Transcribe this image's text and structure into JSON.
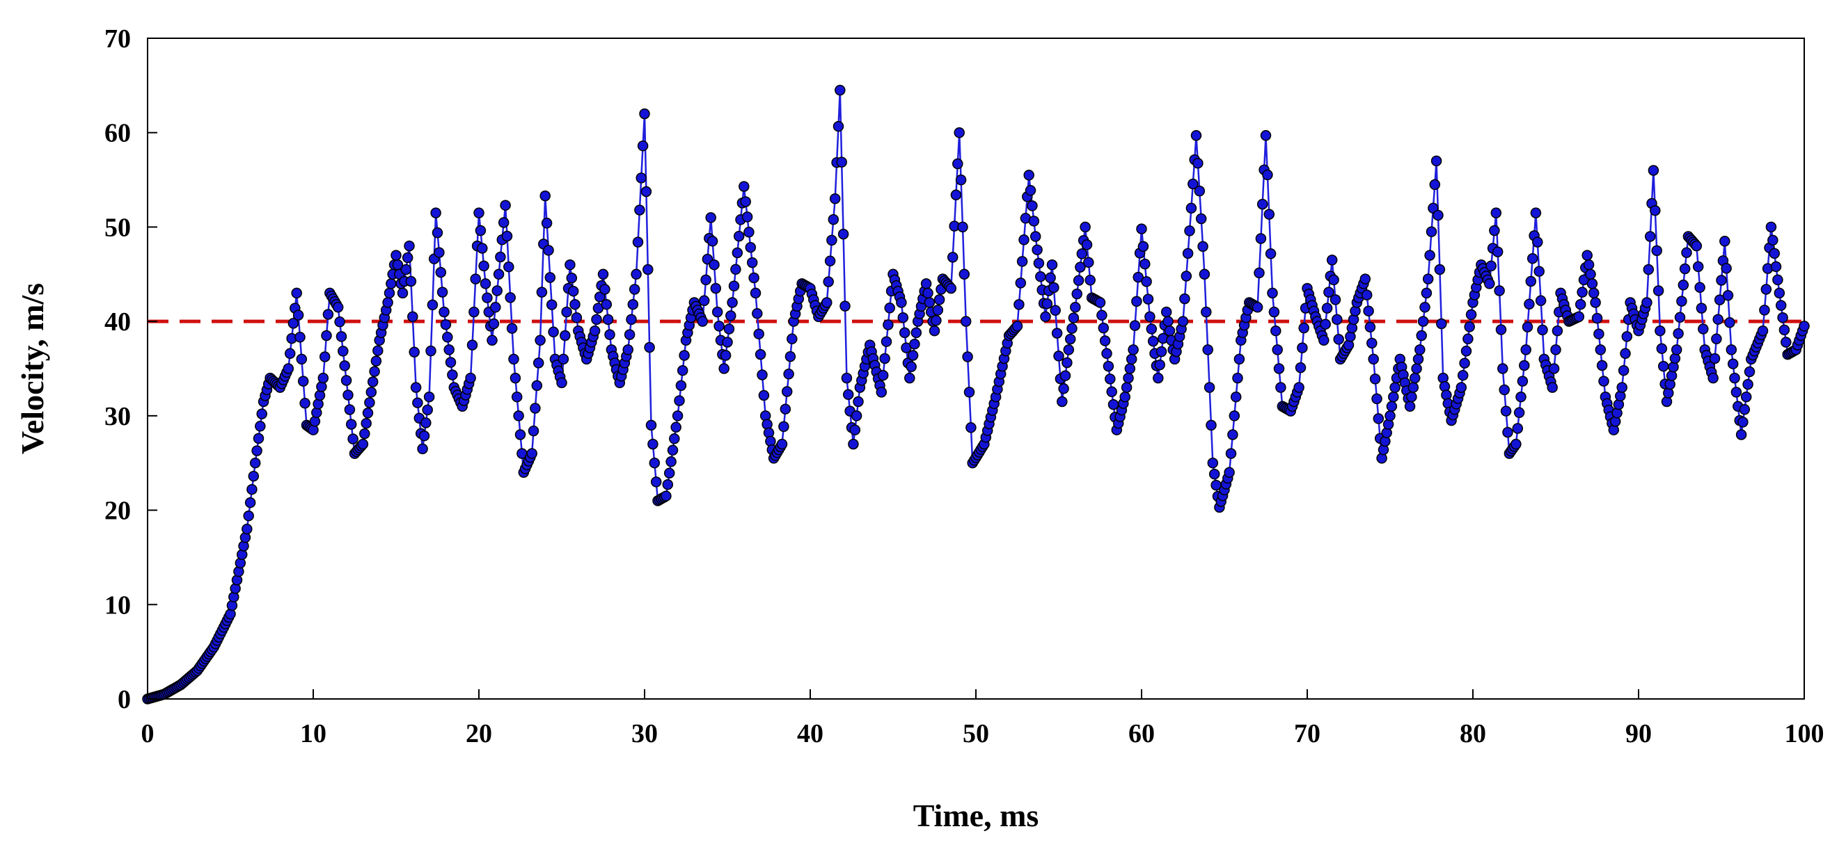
{
  "chart_data": {
    "type": "scatter",
    "title": "",
    "xlabel": "Time, ms",
    "ylabel": "Velocity, m/s",
    "xlim": [
      0,
      100
    ],
    "ylim": [
      0,
      70
    ],
    "x_ticks": [
      "0",
      "10",
      "20",
      "30",
      "40",
      "50",
      "60",
      "70",
      "80",
      "90",
      "100"
    ],
    "y_ticks": [
      "0",
      "10",
      "20",
      "30",
      "40",
      "50",
      "60",
      "70"
    ],
    "grid": false,
    "legend": "none",
    "colors": {
      "series_line": "#1f1fdd",
      "marker_fill": "#1414d6",
      "marker_edge": "#000000",
      "reference_line": "#d01010"
    },
    "series": [
      {
        "name": "Velocity",
        "style": "line-with-circle-markers",
        "sample_interval_ms": 0.1,
        "keyframes": [
          [
            0,
            0
          ],
          [
            1,
            0.5
          ],
          [
            2,
            1.5
          ],
          [
            3,
            3
          ],
          [
            4,
            5.5
          ],
          [
            5,
            9
          ],
          [
            6,
            18
          ],
          [
            6.5,
            25
          ],
          [
            7,
            31.5
          ],
          [
            7.4,
            34
          ],
          [
            8,
            33
          ],
          [
            8.5,
            35
          ],
          [
            9,
            43
          ],
          [
            9.6,
            29
          ],
          [
            10,
            28.5
          ],
          [
            10.6,
            34
          ],
          [
            11,
            43
          ],
          [
            11.5,
            41.5
          ],
          [
            12.5,
            26
          ],
          [
            13,
            27
          ],
          [
            14,
            38
          ],
          [
            14.5,
            42
          ],
          [
            15,
            47
          ],
          [
            15.4,
            43
          ],
          [
            15.8,
            48
          ],
          [
            16.2,
            33
          ],
          [
            16.6,
            26.5
          ],
          [
            17,
            32
          ],
          [
            17.4,
            51.5
          ],
          [
            17.9,
            41
          ],
          [
            18.5,
            33
          ],
          [
            19,
            31
          ],
          [
            19.5,
            34
          ],
          [
            20,
            51.5
          ],
          [
            20.4,
            44
          ],
          [
            20.8,
            38
          ],
          [
            21.2,
            45
          ],
          [
            21.6,
            52.3
          ],
          [
            22.1,
            36
          ],
          [
            22.7,
            24
          ],
          [
            23.2,
            26
          ],
          [
            23.7,
            38
          ],
          [
            24,
            53.3
          ],
          [
            24.6,
            36
          ],
          [
            25,
            33.5
          ],
          [
            25.5,
            46
          ],
          [
            26,
            39
          ],
          [
            26.5,
            36
          ],
          [
            27,
            39
          ],
          [
            27.5,
            45
          ],
          [
            28,
            37
          ],
          [
            28.5,
            33.5
          ],
          [
            29,
            37
          ],
          [
            29.5,
            45
          ],
          [
            30,
            62
          ],
          [
            30.4,
            29
          ],
          [
            30.8,
            21
          ],
          [
            31.3,
            21.5
          ],
          [
            32,
            30
          ],
          [
            32.5,
            38
          ],
          [
            33,
            42
          ],
          [
            33.5,
            40
          ],
          [
            34,
            51
          ],
          [
            34.4,
            41
          ],
          [
            34.8,
            35
          ],
          [
            35.3,
            42
          ],
          [
            36,
            54.3
          ],
          [
            36.7,
            43
          ],
          [
            37.3,
            30
          ],
          [
            37.8,
            25.5
          ],
          [
            38.3,
            27
          ],
          [
            39,
            40
          ],
          [
            39.5,
            44
          ],
          [
            40,
            43.5
          ],
          [
            40.5,
            40.5
          ],
          [
            41,
            42
          ],
          [
            41.5,
            53
          ],
          [
            41.8,
            64.5
          ],
          [
            42.2,
            34
          ],
          [
            42.6,
            27
          ],
          [
            43,
            33
          ],
          [
            43.6,
            37.5
          ],
          [
            44.3,
            32.5
          ],
          [
            45,
            45
          ],
          [
            45.5,
            42
          ],
          [
            46,
            34
          ],
          [
            46.5,
            40
          ],
          [
            47,
            44
          ],
          [
            47.5,
            39
          ],
          [
            48,
            44.5
          ],
          [
            48.5,
            43.5
          ],
          [
            49,
            60
          ],
          [
            49.4,
            40
          ],
          [
            49.8,
            25
          ],
          [
            50.5,
            27
          ],
          [
            51.2,
            32
          ],
          [
            52,
            38.5
          ],
          [
            52.5,
            39.5
          ],
          [
            53.2,
            55.5
          ],
          [
            53.6,
            49
          ],
          [
            54.2,
            40.5
          ],
          [
            54.6,
            46
          ],
          [
            55.2,
            31.5
          ],
          [
            55.6,
            37
          ],
          [
            56,
            41.5
          ],
          [
            56.6,
            50
          ],
          [
            57,
            42.5
          ],
          [
            57.5,
            42
          ],
          [
            58.5,
            28.5
          ],
          [
            59,
            32
          ],
          [
            59.5,
            37
          ],
          [
            60,
            49.8
          ],
          [
            60.5,
            40.5
          ],
          [
            61,
            34
          ],
          [
            61.5,
            41
          ],
          [
            62,
            36
          ],
          [
            62.5,
            40
          ],
          [
            63,
            52
          ],
          [
            63.3,
            59.7
          ],
          [
            63.8,
            45
          ],
          [
            64.3,
            25
          ],
          [
            64.7,
            20.3
          ],
          [
            65.3,
            24
          ],
          [
            66,
            38
          ],
          [
            66.5,
            42
          ],
          [
            67,
            41.5
          ],
          [
            67.5,
            59.7
          ],
          [
            67.9,
            43
          ],
          [
            68.5,
            31
          ],
          [
            69,
            30.5
          ],
          [
            69.5,
            33
          ],
          [
            70,
            43.5
          ],
          [
            70.5,
            40.5
          ],
          [
            71,
            38
          ],
          [
            71.5,
            46.5
          ],
          [
            72,
            36
          ],
          [
            72.5,
            37.5
          ],
          [
            73,
            42
          ],
          [
            73.5,
            44.5
          ],
          [
            74,
            36
          ],
          [
            74.5,
            25.5
          ],
          [
            75,
            30
          ],
          [
            75.6,
            36
          ],
          [
            76.2,
            31
          ],
          [
            76.8,
            37
          ],
          [
            77.3,
            44.5
          ],
          [
            77.8,
            57
          ],
          [
            78.2,
            34
          ],
          [
            78.7,
            29.5
          ],
          [
            79.3,
            33
          ],
          [
            80,
            42
          ],
          [
            80.5,
            46
          ],
          [
            81,
            44
          ],
          [
            81.4,
            51.5
          ],
          [
            81.8,
            35
          ],
          [
            82.2,
            26
          ],
          [
            82.6,
            27
          ],
          [
            83.2,
            37
          ],
          [
            83.8,
            51.5
          ],
          [
            84.3,
            36
          ],
          [
            84.8,
            33
          ],
          [
            85.3,
            43
          ],
          [
            85.8,
            40
          ],
          [
            86.4,
            40.5
          ],
          [
            86.9,
            47
          ],
          [
            87.4,
            42
          ],
          [
            88,
            32
          ],
          [
            88.5,
            28.5
          ],
          [
            89,
            33
          ],
          [
            89.5,
            42
          ],
          [
            90,
            39
          ],
          [
            90.5,
            42
          ],
          [
            90.9,
            56
          ],
          [
            91.3,
            39
          ],
          [
            91.7,
            31.5
          ],
          [
            92.3,
            37
          ],
          [
            93,
            49
          ],
          [
            93.5,
            48
          ],
          [
            94,
            37
          ],
          [
            94.5,
            34
          ],
          [
            95.2,
            48.5
          ],
          [
            95.6,
            37
          ],
          [
            96.2,
            28
          ],
          [
            96.8,
            36
          ],
          [
            97.5,
            39
          ],
          [
            98,
            50
          ],
          [
            98.5,
            43
          ],
          [
            99,
            36.5
          ],
          [
            99.5,
            37
          ],
          [
            100,
            39.5
          ]
        ]
      }
    ],
    "reference_lines": [
      {
        "orientation": "horizontal",
        "y": 40,
        "style": "dashed"
      }
    ]
  }
}
